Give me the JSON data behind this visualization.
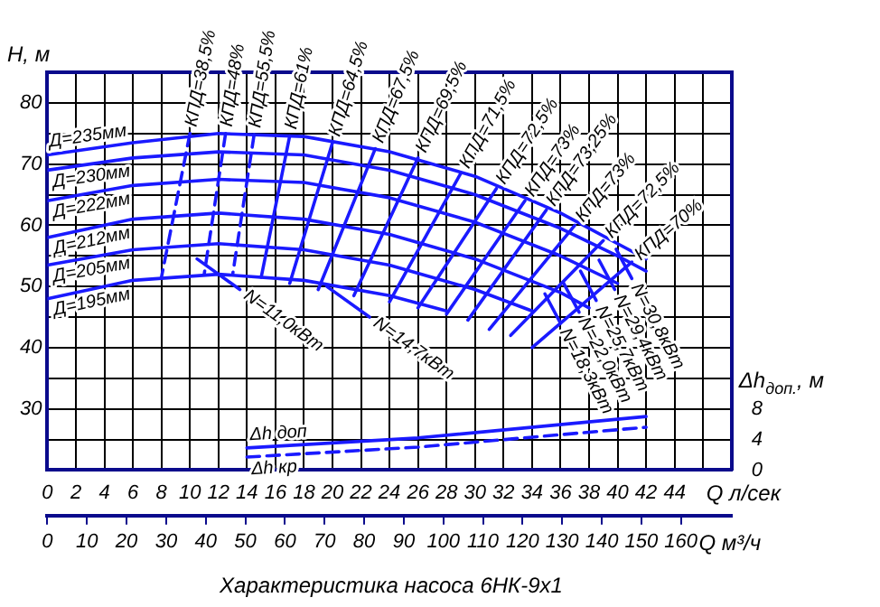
{
  "chart_data": {
    "type": "line",
    "title": "Характеристика насоса 6НК-9х1",
    "xlabel": "Q л/сек",
    "ylabel": "H, м",
    "y2label": "Δh$_{доп.}$, м",
    "x2label": "Q м³/ч",
    "xlim": [
      0,
      48
    ],
    "xticks": [
      0,
      2,
      4,
      6,
      8,
      10,
      12,
      14,
      16,
      18,
      20,
      22,
      24,
      26,
      28,
      30,
      32,
      34,
      36,
      38,
      40,
      42,
      44,
      {
        "value": 46,
        "label": null
      }
    ],
    "ylim": [
      20,
      85
    ],
    "yticks": [
      {
        "value": 20,
        "label": null
      },
      {
        "value": 25,
        "label": null
      },
      30,
      {
        "value": 35,
        "label": null
      },
      40,
      {
        "value": 45,
        "label": null
      },
      50,
      {
        "value": 55,
        "label": null
      },
      60,
      {
        "value": 65,
        "label": null
      },
      70,
      {
        "value": 75,
        "label": null
      },
      80,
      {
        "value": 85,
        "label": null
      }
    ],
    "y2lim": [
      0,
      52
    ],
    "y2ticks": [
      0,
      4,
      8
    ],
    "x2lim": [
      0,
      172.8
    ],
    "x2ticks": [
      0,
      10,
      20,
      30,
      40,
      50,
      60,
      70,
      80,
      90,
      100,
      110,
      120,
      130,
      140,
      150,
      160
    ],
    "grid": true,
    "legend": false,
    "marker": "none",
    "line_style": "solid",
    "series": [
      {
        "name": "Д=235мм",
        "color": "#1a1aff",
        "x": [
          0,
          6,
          12,
          18,
          24,
          30,
          36,
          40,
          42
        ],
        "values": [
          71.5,
          73.5,
          75,
          74.5,
          72,
          68,
          62,
          57,
          54.5
        ]
      },
      {
        "name": "Д=230мм",
        "color": "#1a1aff",
        "x": [
          0,
          6,
          12,
          18,
          24,
          30,
          36,
          40,
          42
        ],
        "values": [
          69,
          71,
          72,
          71.5,
          69,
          65,
          59.5,
          55,
          52.5
        ]
      },
      {
        "name": "Д=222мм",
        "color": "#1a1aff",
        "x": [
          0,
          6,
          12,
          18,
          24,
          30,
          36,
          40
        ],
        "values": [
          64,
          66.5,
          67.5,
          67,
          64.5,
          60.5,
          55,
          50.5
        ]
      },
      {
        "name": "Д=212мм",
        "color": "#1a1aff",
        "x": [
          0,
          6,
          12,
          18,
          24,
          30,
          36,
          38
        ],
        "values": [
          58,
          61,
          62,
          61,
          58.5,
          54.5,
          49,
          46.5
        ]
      },
      {
        "name": "Д=205мм",
        "color": "#1a1aff",
        "x": [
          0,
          6,
          12,
          18,
          24,
          30,
          34
        ],
        "values": [
          53.5,
          56,
          57,
          56,
          53.5,
          49.5,
          46
        ]
      },
      {
        "name": "Д=195мм",
        "color": "#1a1aff",
        "x": [
          0,
          6,
          12,
          18,
          24,
          28
        ],
        "values": [
          48,
          51,
          52,
          51,
          48.5,
          46
        ]
      },
      {
        "name": "КПД=38,5%",
        "color": "#1a1aff",
        "line_style": "dashed",
        "x": [
          10,
          8
        ],
        "values": [
          75,
          51.5
        ]
      },
      {
        "name": "КПД=48%",
        "color": "#1a1aff",
        "line_style": "dashed",
        "x": [
          12.5,
          11
        ],
        "values": [
          75,
          52
        ]
      },
      {
        "name": "КПД=55,5%",
        "color": "#1a1aff",
        "line_style": "dashed",
        "x": [
          14.5,
          13
        ],
        "values": [
          74.8,
          52
        ]
      },
      {
        "name": "КПД=61%",
        "color": "#1a1aff",
        "x": [
          17,
          15
        ],
        "values": [
          74.6,
          51.5
        ]
      },
      {
        "name": "КПД=64,5%",
        "color": "#1a1aff",
        "x": [
          20,
          17
        ],
        "values": [
          73.5,
          50.5
        ]
      },
      {
        "name": "КПД=67,5%",
        "color": "#1a1aff",
        "x": [
          23,
          19
        ],
        "values": [
          72.5,
          49.5
        ]
      },
      {
        "name": "КПД=69,5%",
        "color": "#1a1aff",
        "x": [
          26,
          21.5
        ],
        "values": [
          71,
          48.5
        ]
      },
      {
        "name": "КПД=71,5%",
        "color": "#1a1aff",
        "x": [
          29,
          24
        ],
        "values": [
          68.5,
          47.5
        ]
      },
      {
        "name": "КПД=72,5%",
        "color": "#1a1aff",
        "x": [
          31.5,
          26
        ],
        "values": [
          66,
          46.5
        ]
      },
      {
        "name": "КПД=73%",
        "color": "#1a1aff",
        "x": [
          33.5,
          28
        ],
        "values": [
          64,
          45.5
        ]
      },
      {
        "name": "КПД=73,25%",
        "color": "#1a1aff",
        "x": [
          35,
          29.5
        ],
        "values": [
          62.5,
          44.5
        ]
      },
      {
        "name": "КПД=73%",
        "color": "#1a1aff",
        "x": [
          37,
          31
        ],
        "values": [
          60,
          43
        ]
      },
      {
        "name": "КПД=72,5%",
        "color": "#1a1aff",
        "x": [
          39,
          32.5
        ],
        "values": [
          57.5,
          42
        ]
      },
      {
        "name": "КПД=70%",
        "color": "#1a1aff",
        "x": [
          41,
          34
        ],
        "values": [
          54,
          40
        ]
      },
      {
        "name": "N=11,0кВт",
        "color": "#1a1aff",
        "x": [
          13.5,
          10.5
        ],
        "values": [
          49.5,
          54.5
        ]
      },
      {
        "name": "N=14,7кВт",
        "color": "#1a1aff",
        "x": [
          22.6,
          19.6
        ],
        "values": [
          45,
          50
        ]
      },
      {
        "name": "N=18,3кВт",
        "color": "#1a1aff",
        "x": [
          36,
          34.9
        ],
        "values": [
          44,
          48.8
        ]
      },
      {
        "name": "N=22,0кВт",
        "color": "#1a1aff",
        "x": [
          37.3,
          36.2
        ],
        "values": [
          45.8,
          50.6
        ]
      },
      {
        "name": "N=25,7кВт",
        "color": "#1a1aff",
        "x": [
          38.5,
          37.4
        ],
        "values": [
          47.7,
          52.5
        ]
      },
      {
        "name": "N=29,4кВт",
        "color": "#1a1aff",
        "x": [
          39.8,
          38.7
        ],
        "values": [
          49.5,
          54.3
        ]
      },
      {
        "name": "N=30,8кВт",
        "color": "#1a1aff",
        "x": [
          41,
          39.9
        ],
        "values": [
          51.3,
          56.1
        ]
      },
      {
        "name": "Δh доп",
        "color": "#1a1aff",
        "axis": "y2",
        "x": [
          14,
          26,
          42
        ],
        "values": [
          2.9,
          4.2,
          7
        ]
      },
      {
        "name": "Δh кр",
        "color": "#1a1aff",
        "axis": "y2",
        "line_style": "dashed",
        "x": [
          14,
          26,
          42
        ],
        "values": [
          1.7,
          3,
          5.6
        ]
      }
    ]
  }
}
